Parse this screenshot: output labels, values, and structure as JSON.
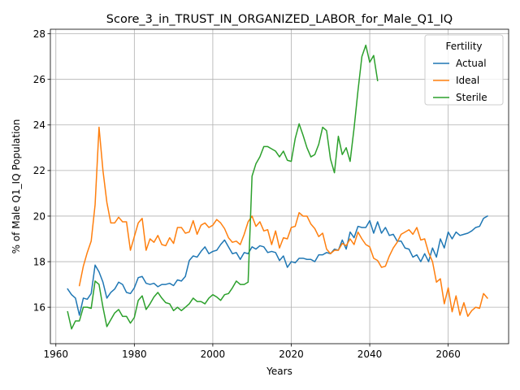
{
  "chart_data": {
    "type": "line",
    "title": "Score_3_in_TRUST_IN_ORGANIZED_LABOR_for_Male_Q1_IQ",
    "xlabel": "Years",
    "ylabel": "% of Male Q1_IQ Population",
    "xlim": [
      1958.6,
      2075.4
    ],
    "ylim": [
      14.4,
      28.2
    ],
    "xticks": [
      1960,
      1980,
      2000,
      2020,
      2040,
      2060
    ],
    "yticks": [
      16,
      18,
      20,
      22,
      24,
      26,
      28
    ],
    "grid": true,
    "legend": {
      "title": "Fertility",
      "placement": "top-right"
    },
    "series": [
      {
        "name": "Actual",
        "color": "#1f77b4",
        "x": [
          1963,
          1964,
          1965,
          1966,
          1967,
          1968,
          1969,
          1970,
          1971,
          1972,
          1973,
          1974,
          1975,
          1976,
          1977,
          1978,
          1979,
          1980,
          1981,
          1982,
          1983,
          1984,
          1985,
          1986,
          1987,
          1988,
          1989,
          1990,
          1991,
          1992,
          1993,
          1994,
          1995,
          1996,
          1997,
          1998,
          1999,
          2000,
          2001,
          2002,
          2003,
          2004,
          2005,
          2006,
          2007,
          2008,
          2009,
          2010,
          2011,
          2012,
          2013,
          2014,
          2015,
          2016,
          2017,
          2018,
          2019,
          2020,
          2021,
          2022,
          2023,
          2024,
          2025,
          2026,
          2027,
          2028,
          2029,
          2030,
          2031,
          2032,
          2033,
          2034,
          2035,
          2036,
          2037,
          2038,
          2039,
          2040,
          2041,
          2042,
          2043,
          2044,
          2045,
          2046,
          2047,
          2048,
          2049,
          2050,
          2051,
          2052,
          2053,
          2054,
          2055,
          2056,
          2057,
          2058,
          2059,
          2060,
          2061,
          2062,
          2063,
          2064,
          2065,
          2066,
          2067,
          2068,
          2069,
          2070
        ],
        "y": [
          16.8,
          16.55,
          16.4,
          15.65,
          16.4,
          16.35,
          16.6,
          17.85,
          17.55,
          17.1,
          16.4,
          16.65,
          16.8,
          17.1,
          17.0,
          16.65,
          16.6,
          16.85,
          17.3,
          17.35,
          17.05,
          17.0,
          17.05,
          16.9,
          17.0,
          17.0,
          17.05,
          16.95,
          17.2,
          17.15,
          17.35,
          18.05,
          18.25,
          18.2,
          18.45,
          18.65,
          18.35,
          18.45,
          18.5,
          18.75,
          18.95,
          18.65,
          18.35,
          18.4,
          18.1,
          18.4,
          18.35,
          18.65,
          18.55,
          18.7,
          18.65,
          18.4,
          18.45,
          18.4,
          18.05,
          18.25,
          17.75,
          18.0,
          17.95,
          18.15,
          18.15,
          18.1,
          18.1,
          18.0,
          18.3,
          18.3,
          18.4,
          18.35,
          18.55,
          18.5,
          18.95,
          18.55,
          19.3,
          19.05,
          19.55,
          19.5,
          19.5,
          19.8,
          19.25,
          19.75,
          19.25,
          19.5,
          19.15,
          19.2,
          18.9,
          18.9,
          18.6,
          18.55,
          18.2,
          18.3,
          18.0,
          18.35,
          18.0,
          18.6,
          18.2,
          19.0,
          18.6,
          19.3,
          19.0,
          19.3,
          19.15,
          19.2,
          19.25,
          19.35,
          19.5,
          19.55,
          19.9,
          20.0
        ]
      },
      {
        "name": "Ideal",
        "color": "#ff7f0e",
        "x": [
          1966,
          1967,
          1968,
          1969,
          1970,
          1971,
          1972,
          1973,
          1974,
          1975,
          1976,
          1977,
          1978,
          1979,
          1980,
          1981,
          1982,
          1983,
          1984,
          1985,
          1986,
          1987,
          1988,
          1989,
          1990,
          1991,
          1992,
          1993,
          1994,
          1995,
          1996,
          1997,
          1998,
          1999,
          2000,
          2001,
          2002,
          2003,
          2004,
          2005,
          2006,
          2007,
          2008,
          2009,
          2010,
          2011,
          2012,
          2013,
          2014,
          2015,
          2016,
          2017,
          2018,
          2019,
          2020,
          2021,
          2022,
          2023,
          2024,
          2025,
          2026,
          2027,
          2028,
          2029,
          2030,
          2031,
          2032,
          2033,
          2034,
          2035,
          2036,
          2037,
          2038,
          2039,
          2040,
          2041,
          2042,
          2043,
          2044,
          2045,
          2046,
          2047,
          2048,
          2049,
          2050,
          2051,
          2052,
          2053,
          2054,
          2055,
          2056,
          2057,
          2058,
          2059,
          2060,
          2061,
          2062,
          2063,
          2064,
          2065,
          2066,
          2067,
          2068,
          2069,
          2070
        ],
        "y": [
          16.95,
          17.8,
          18.4,
          18.9,
          20.5,
          23.9,
          22.0,
          20.6,
          19.7,
          19.7,
          19.95,
          19.75,
          19.75,
          18.5,
          19.1,
          19.7,
          19.9,
          18.5,
          19.0,
          18.85,
          19.15,
          18.75,
          18.7,
          19.05,
          18.8,
          19.5,
          19.5,
          19.25,
          19.3,
          19.8,
          19.2,
          19.6,
          19.7,
          19.5,
          19.6,
          19.85,
          19.7,
          19.45,
          19.05,
          18.85,
          18.9,
          18.75,
          19.2,
          19.75,
          20.0,
          19.55,
          19.75,
          19.35,
          19.4,
          18.75,
          19.35,
          18.6,
          19.05,
          19.0,
          19.5,
          19.55,
          20.15,
          20.0,
          20.0,
          19.65,
          19.45,
          19.1,
          19.25,
          18.55,
          18.35,
          18.5,
          18.5,
          18.8,
          18.7,
          19.0,
          18.75,
          19.3,
          19.0,
          18.75,
          18.65,
          18.15,
          18.05,
          17.75,
          17.8,
          18.25,
          18.6,
          18.85,
          19.2,
          19.3,
          19.4,
          19.2,
          19.5,
          18.95,
          19.0,
          18.4,
          18.0,
          17.1,
          17.25,
          16.15,
          16.85,
          15.8,
          16.5,
          15.65,
          16.2,
          15.6,
          15.85,
          16.0,
          15.95,
          16.6,
          16.4
        ]
      },
      {
        "name": "Sterile",
        "color": "#2ca02c",
        "x": [
          1963,
          1964,
          1965,
          1966,
          1967,
          1968,
          1969,
          1970,
          1971,
          1972,
          1973,
          1974,
          1975,
          1976,
          1977,
          1978,
          1979,
          1980,
          1981,
          1982,
          1983,
          1984,
          1985,
          1986,
          1987,
          1988,
          1989,
          1990,
          1991,
          1992,
          1993,
          1994,
          1995,
          1996,
          1997,
          1998,
          1999,
          2000,
          2001,
          2002,
          2003,
          2004,
          2005,
          2006,
          2007,
          2008,
          2009,
          2010,
          2011,
          2012,
          2013,
          2014,
          2015,
          2016,
          2017,
          2018,
          2019,
          2020,
          2021,
          2022,
          2023,
          2024,
          2025,
          2026,
          2027,
          2028,
          2029,
          2030,
          2031,
          2032,
          2033,
          2034,
          2035,
          2036,
          2037,
          2038,
          2039,
          2040,
          2041,
          2042
        ],
        "y": [
          15.8,
          15.05,
          15.4,
          15.4,
          16.0,
          16.0,
          15.95,
          17.15,
          17.0,
          16.0,
          15.15,
          15.45,
          15.75,
          15.9,
          15.6,
          15.6,
          15.3,
          15.55,
          16.3,
          16.5,
          15.9,
          16.15,
          16.45,
          16.65,
          16.4,
          16.2,
          16.15,
          15.85,
          16.0,
          15.85,
          16.0,
          16.15,
          16.4,
          16.25,
          16.25,
          16.15,
          16.4,
          16.55,
          16.45,
          16.3,
          16.55,
          16.6,
          16.85,
          17.15,
          17.0,
          17.0,
          17.1,
          21.75,
          22.3,
          22.6,
          23.05,
          23.05,
          22.95,
          22.85,
          22.6,
          22.85,
          22.45,
          22.4,
          23.4,
          24.05,
          23.55,
          23.0,
          22.6,
          22.7,
          23.15,
          23.9,
          23.75,
          22.5,
          21.9,
          23.5,
          22.7,
          23.0,
          22.4,
          23.85,
          25.5,
          27.0,
          27.5,
          26.75,
          27.05,
          25.95
        ]
      }
    ]
  }
}
